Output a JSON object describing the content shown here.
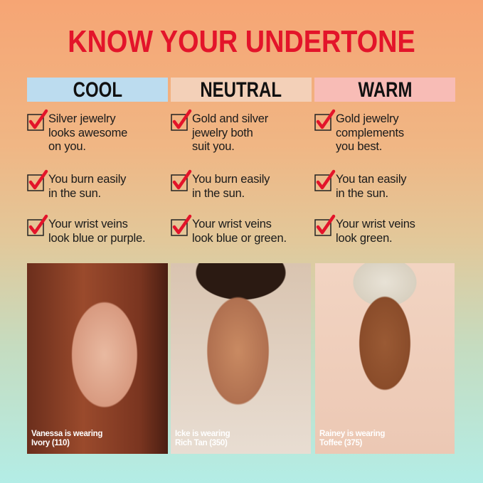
{
  "title": "KNOW YOUR UNDERTONE",
  "columns": [
    {
      "label": "COOL",
      "color": "#bcdcef",
      "items": [
        "Silver jewelry looks awesome on you.",
        "You burn easily in the sun.",
        "Your wrist veins look blue or purple."
      ],
      "caption": [
        "Vanessa is wearing",
        "Ivory (110)"
      ]
    },
    {
      "label": "NEUTRAL",
      "color": "#f3d0b8",
      "items": [
        "Gold and silver jewelry both suit you.",
        "You burn easily in the sun.",
        "Your wrist veins look blue or green."
      ],
      "caption": [
        "Icke is wearing",
        "Rich Tan (350)"
      ]
    },
    {
      "label": "WARM",
      "color": "#f8bcb6",
      "items": [
        "Gold jewelry complements you best.",
        "You tan easily in the sun.",
        "Your wrist veins look green."
      ],
      "caption": [
        "Rainey is wearing",
        "Toffee (375)"
      ]
    }
  ],
  "icons": {
    "check": "checkbox-checked-icon"
  },
  "accent": "#e3142a"
}
